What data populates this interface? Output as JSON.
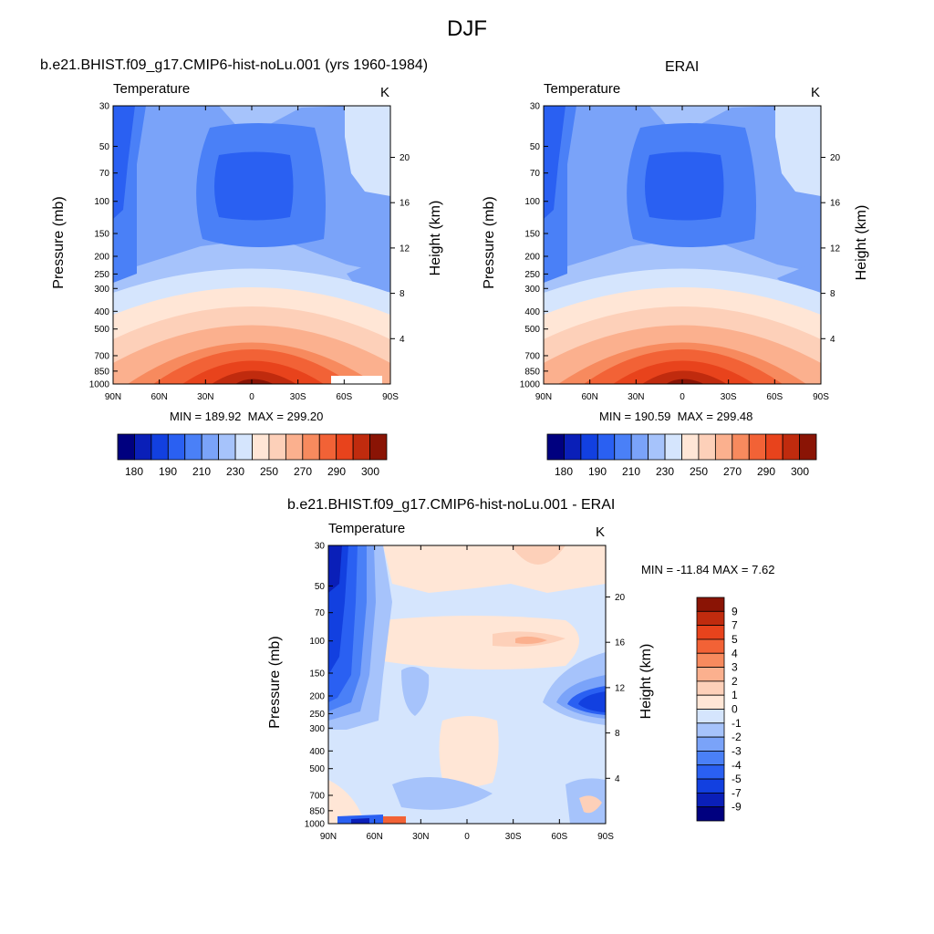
{
  "title": "DJF",
  "colors": {
    "levels": [
      "#00007f",
      "#0a1fb8",
      "#1240e0",
      "#2a60f2",
      "#4a80f7",
      "#7aa3f9",
      "#a6c3fb",
      "#d5e5fd",
      "#ffe6d6",
      "#fdd0b9",
      "#fbb08e",
      "#f78a5e",
      "#f26236",
      "#e8431c",
      "#c02b0e",
      "#8a1405"
    ]
  },
  "chart_data": [
    {
      "type": "contour",
      "panel_title": "b.e21.BHIST.f09_g17.CMIP6-hist-noLu.001 (yrs 1960-1984)",
      "field": "Temperature",
      "units": "K",
      "ylabel": "Pressure (mb)",
      "ylabel_right": "Height (km)",
      "x_ticks": [
        "90N",
        "60N",
        "30N",
        "0",
        "30S",
        "60S",
        "90S"
      ],
      "y_ticks": [
        "30",
        "50",
        "70",
        "100",
        "150",
        "200",
        "250",
        "300",
        "400",
        "500",
        "700",
        "850",
        "1000"
      ],
      "height_ticks": [
        "20",
        "16",
        "12",
        "8",
        "4"
      ],
      "min_label": "MIN = 189.92",
      "max_label": "MAX = 299.20",
      "min": 189.92,
      "max": 299.2,
      "colorbar_labels": [
        "180",
        "190",
        "210",
        "230",
        "250",
        "270",
        "290",
        "300"
      ]
    },
    {
      "type": "contour",
      "panel_title": "ERAI",
      "field": "Temperature",
      "units": "K",
      "ylabel": "Pressure (mb)",
      "ylabel_right": "Height (km)",
      "x_ticks": [
        "90N",
        "60N",
        "30N",
        "0",
        "30S",
        "60S",
        "90S"
      ],
      "y_ticks": [
        "30",
        "50",
        "70",
        "100",
        "150",
        "200",
        "250",
        "300",
        "400",
        "500",
        "700",
        "850",
        "1000"
      ],
      "height_ticks": [
        "20",
        "16",
        "12",
        "8",
        "4"
      ],
      "min_label": "MIN = 190.59",
      "max_label": "MAX = 299.48",
      "min": 190.59,
      "max": 299.48,
      "colorbar_labels": [
        "180",
        "190",
        "210",
        "230",
        "250",
        "270",
        "290",
        "300"
      ]
    },
    {
      "type": "contour",
      "panel_title": "b.e21.BHIST.f09_g17.CMIP6-hist-noLu.001 - ERAI",
      "field": "Temperature",
      "units": "K",
      "ylabel": "Pressure (mb)",
      "ylabel_right": "Height (km)",
      "x_ticks": [
        "90N",
        "60N",
        "30N",
        "0",
        "30S",
        "60S",
        "90S"
      ],
      "y_ticks": [
        "30",
        "50",
        "70",
        "100",
        "150",
        "200",
        "250",
        "300",
        "400",
        "500",
        "700",
        "850",
        "1000"
      ],
      "height_ticks": [
        "20",
        "16",
        "12",
        "8",
        "4"
      ],
      "minmax_label": "MIN = -11.84  MAX =   7.62",
      "min": -11.84,
      "max": 7.62,
      "colorbar_labels": [
        "9",
        "7",
        "5",
        "4",
        "3",
        "2",
        "1",
        "0",
        "-1",
        "-2",
        "-3",
        "-4",
        "-5",
        "-7",
        "-9"
      ]
    }
  ]
}
